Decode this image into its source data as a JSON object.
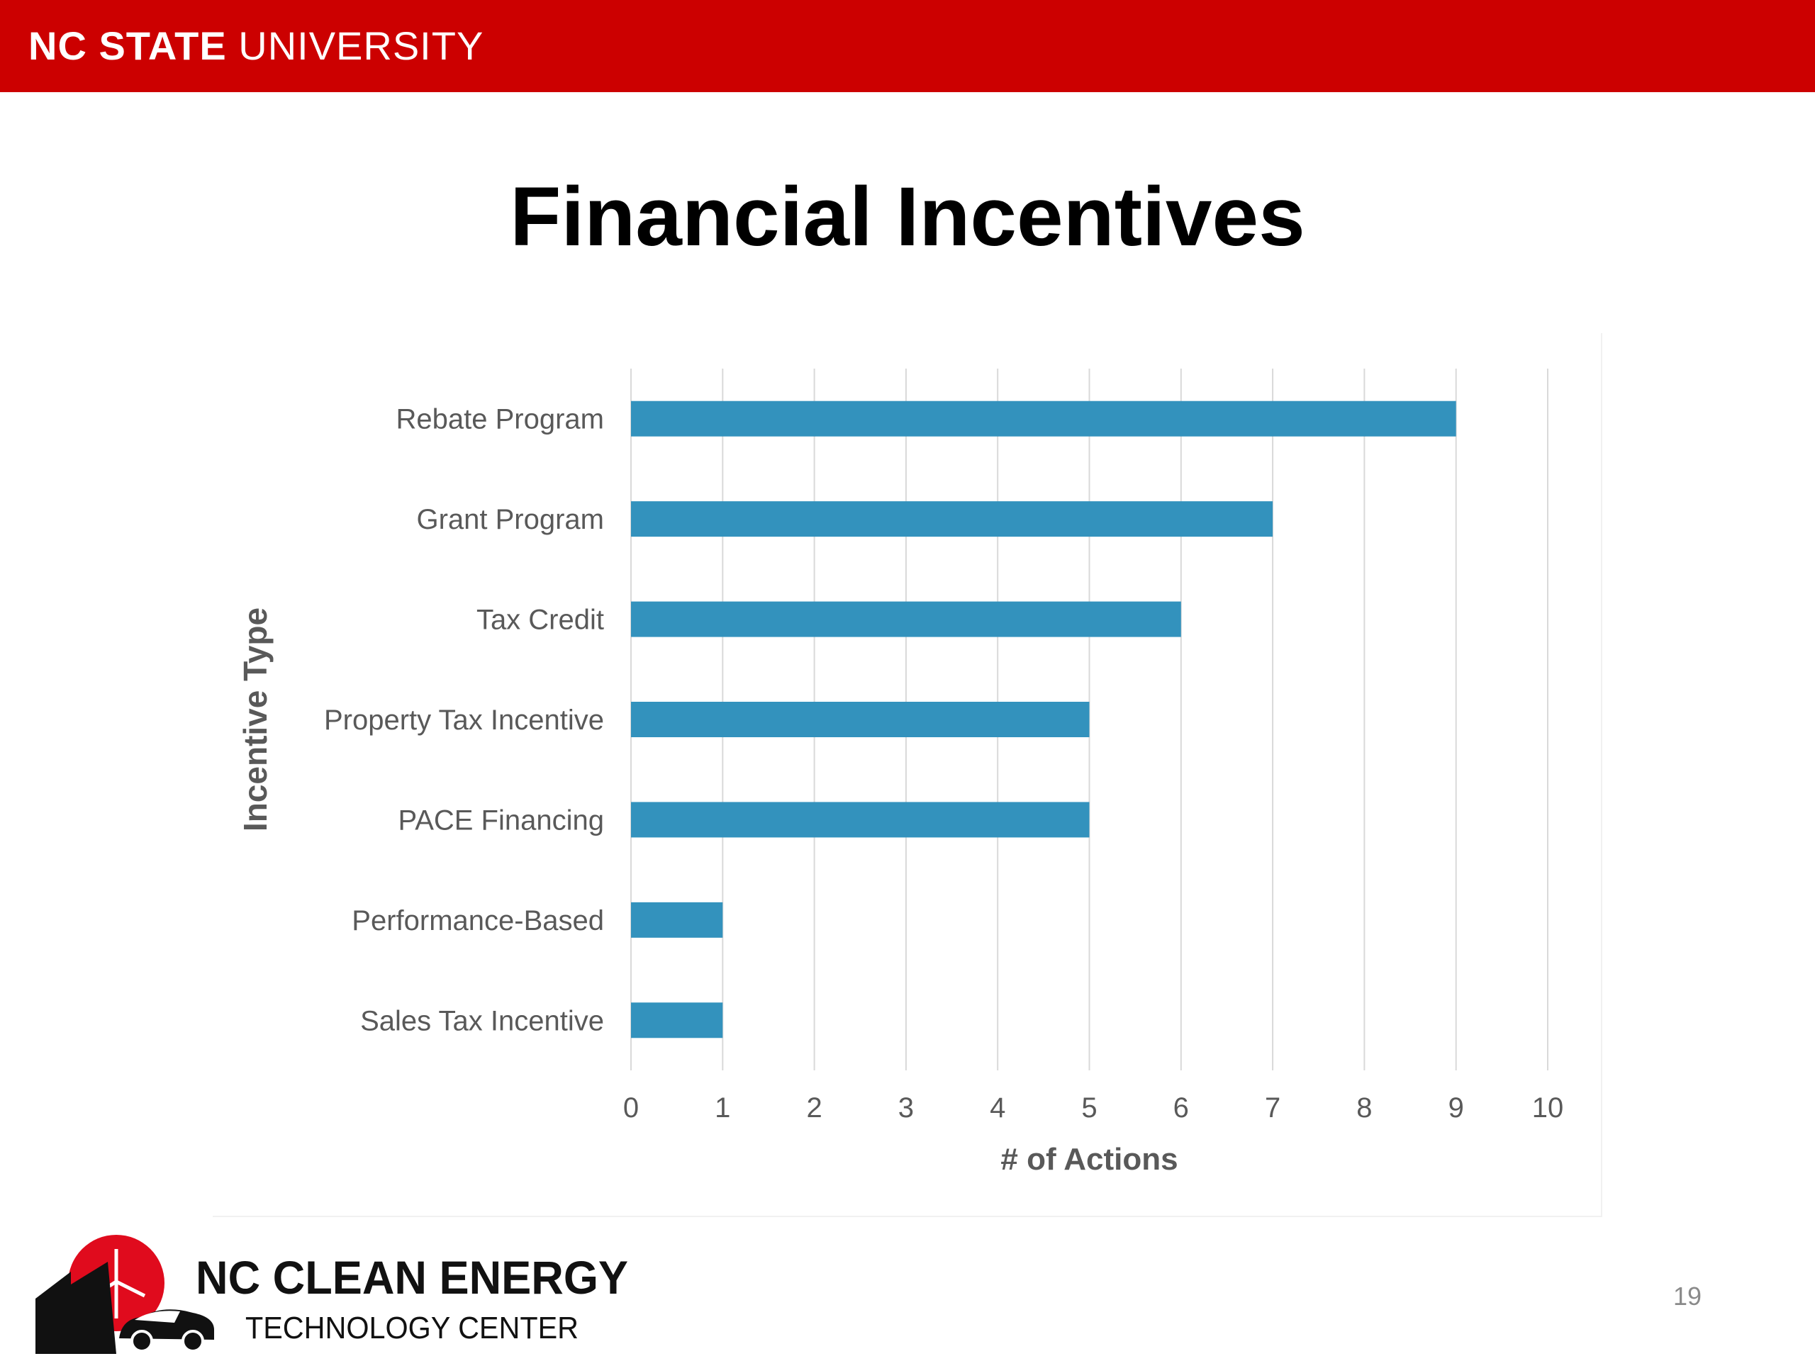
{
  "header": {
    "brand_bold": "NC STATE",
    "brand_regular": " UNIVERSITY",
    "background_color": "#cc0000"
  },
  "slide": {
    "title": "Financial Incentives",
    "page_number": "19"
  },
  "footer": {
    "logo_line1": "NC CLEAN ENERGY",
    "logo_line2": "TECHNOLOGY CENTER"
  },
  "chart_data": {
    "type": "bar",
    "orientation": "horizontal",
    "categories": [
      "Rebate Program",
      "Grant Program",
      "Tax Credit",
      "Property Tax Incentive",
      "PACE Financing",
      "Performance-Based",
      "Sales Tax Incentive"
    ],
    "values": [
      9,
      7,
      6,
      5,
      5,
      1,
      1
    ],
    "xlabel": "# of Actions",
    "ylabel": "Incentive Type",
    "xlim": [
      0,
      10
    ],
    "x_ticks": [
      0,
      1,
      2,
      3,
      4,
      5,
      6,
      7,
      8,
      9,
      10
    ],
    "grid": "vertical",
    "legend": "none",
    "bar_color": "#3392bd"
  }
}
